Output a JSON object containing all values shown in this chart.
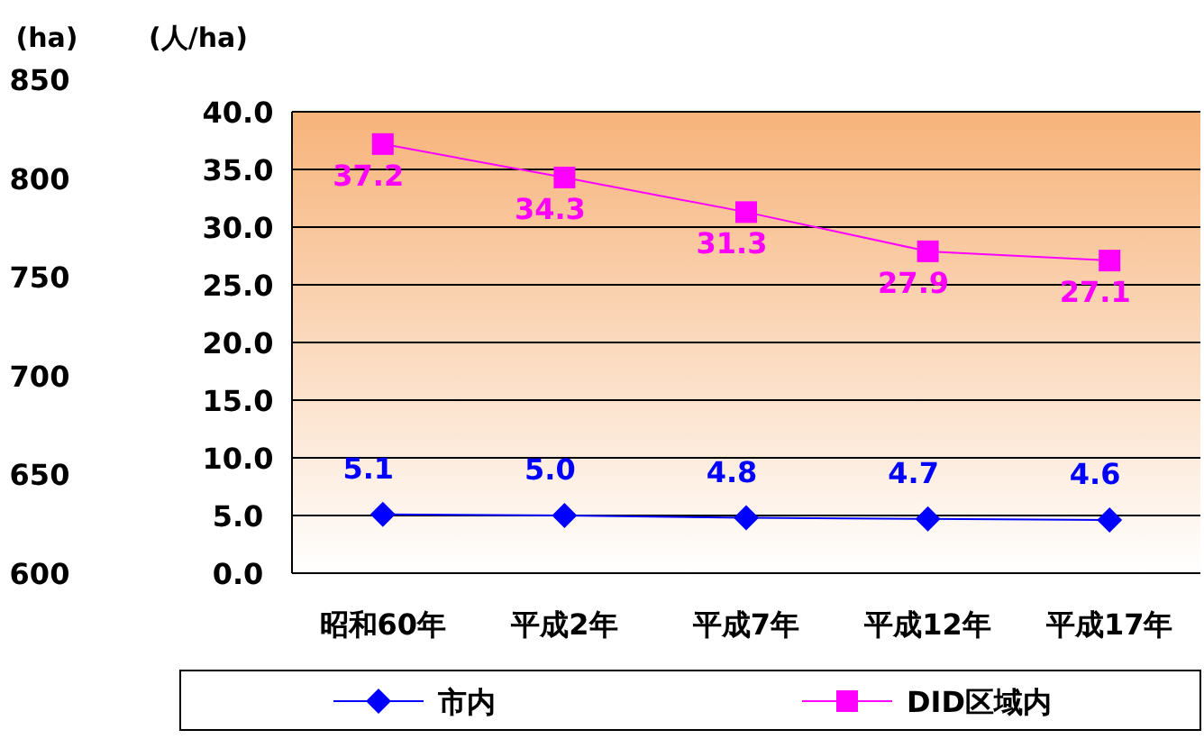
{
  "chart_data": {
    "type": "line",
    "ylabel": "(人/ha)",
    "y2label": "(ha)",
    "categories": [
      "昭和60年",
      "平成2年",
      "平成7年",
      "平成12年",
      "平成17年"
    ],
    "series": [
      {
        "name": "市内",
        "color": "#0000ff",
        "marker": "diamond",
        "values": [
          5.1,
          5.0,
          4.8,
          4.7,
          4.6
        ],
        "value_labels": [
          "5.1",
          "5.0",
          "4.8",
          "4.7",
          "4.6"
        ]
      },
      {
        "name": "DID区域内",
        "color": "#ff00ff",
        "marker": "square",
        "values": [
          37.2,
          34.3,
          31.3,
          27.9,
          27.1
        ],
        "value_labels": [
          "37.2",
          "34.3",
          "31.3",
          "27.9",
          "27.1"
        ]
      }
    ],
    "ylim": [
      0,
      40
    ],
    "yticks": [
      {
        "value": 0,
        "label": "0.0"
      },
      {
        "value": 5,
        "label": "5.0"
      },
      {
        "value": 10,
        "label": "10.0"
      },
      {
        "value": 15,
        "label": "15.0"
      },
      {
        "value": 20,
        "label": "20.0"
      },
      {
        "value": 25,
        "label": "25.0"
      },
      {
        "value": 30,
        "label": "30.0"
      },
      {
        "value": 35,
        "label": "35.0"
      },
      {
        "value": 40,
        "label": "40.0"
      }
    ],
    "y2lim": [
      600,
      850
    ],
    "y2ticks": [
      600,
      650,
      700,
      750,
      800,
      850
    ],
    "grid": "y",
    "legend": "bottom"
  }
}
